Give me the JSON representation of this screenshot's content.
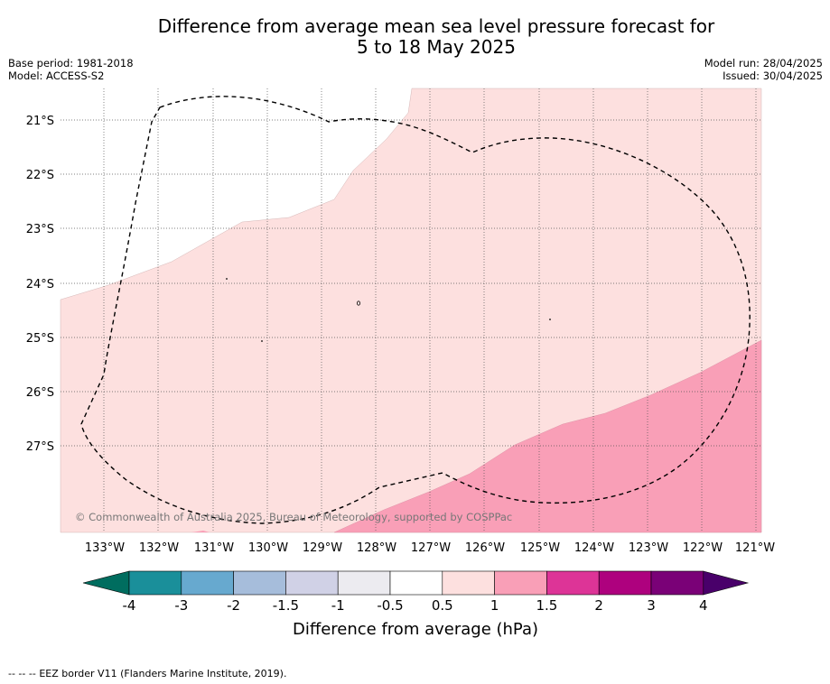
{
  "title": {
    "line1": "Difference from average mean sea level pressure forecast for",
    "line2": "5 to 18 May 2025"
  },
  "meta": {
    "base_period": "Base period: 1981-2018",
    "model": "Model: ACCESS-S2",
    "model_run": "Model run: 28/04/2025",
    "issued": "Issued: 30/04/2025"
  },
  "map": {
    "lat_labels": [
      "21°S",
      "22°S",
      "23°S",
      "24°S",
      "25°S",
      "26°S",
      "27°S"
    ],
    "lon_labels": [
      "133°W",
      "132°W",
      "131°W",
      "130°W",
      "129°W",
      "128°W",
      "127°W",
      "126°W",
      "125°W",
      "124°W",
      "123°W",
      "122°W",
      "121°W"
    ],
    "copyright": "© Commonwealth of Australia 2025, Bureau of Meteorology, supported by COSPPac",
    "colors": {
      "anomaly_0_5_to_1": "#fde0df",
      "anomaly_1_to_1_5": "#f99fb7",
      "background": "#ffffff"
    }
  },
  "colorbar": {
    "ticks": [
      "-4",
      "-3",
      "-2",
      "-1.5",
      "-1",
      "-0.5",
      "0.5",
      "1",
      "1.5",
      "2",
      "3",
      "4"
    ],
    "label": "Difference from average (hPa)",
    "colors": [
      "#006d5f",
      "#1a8f9a",
      "#67a9cf",
      "#a6bddb",
      "#d0d1e6",
      "#ecebf0",
      "#ffffff",
      "#fde0df",
      "#f99fb7",
      "#dd3497",
      "#ae017e",
      "#7a0177",
      "#49006a"
    ]
  },
  "footer": {
    "legend_symbol": "-- -- --",
    "text": "EEZ border V11 (Flanders Marine Institute, 2019)."
  }
}
